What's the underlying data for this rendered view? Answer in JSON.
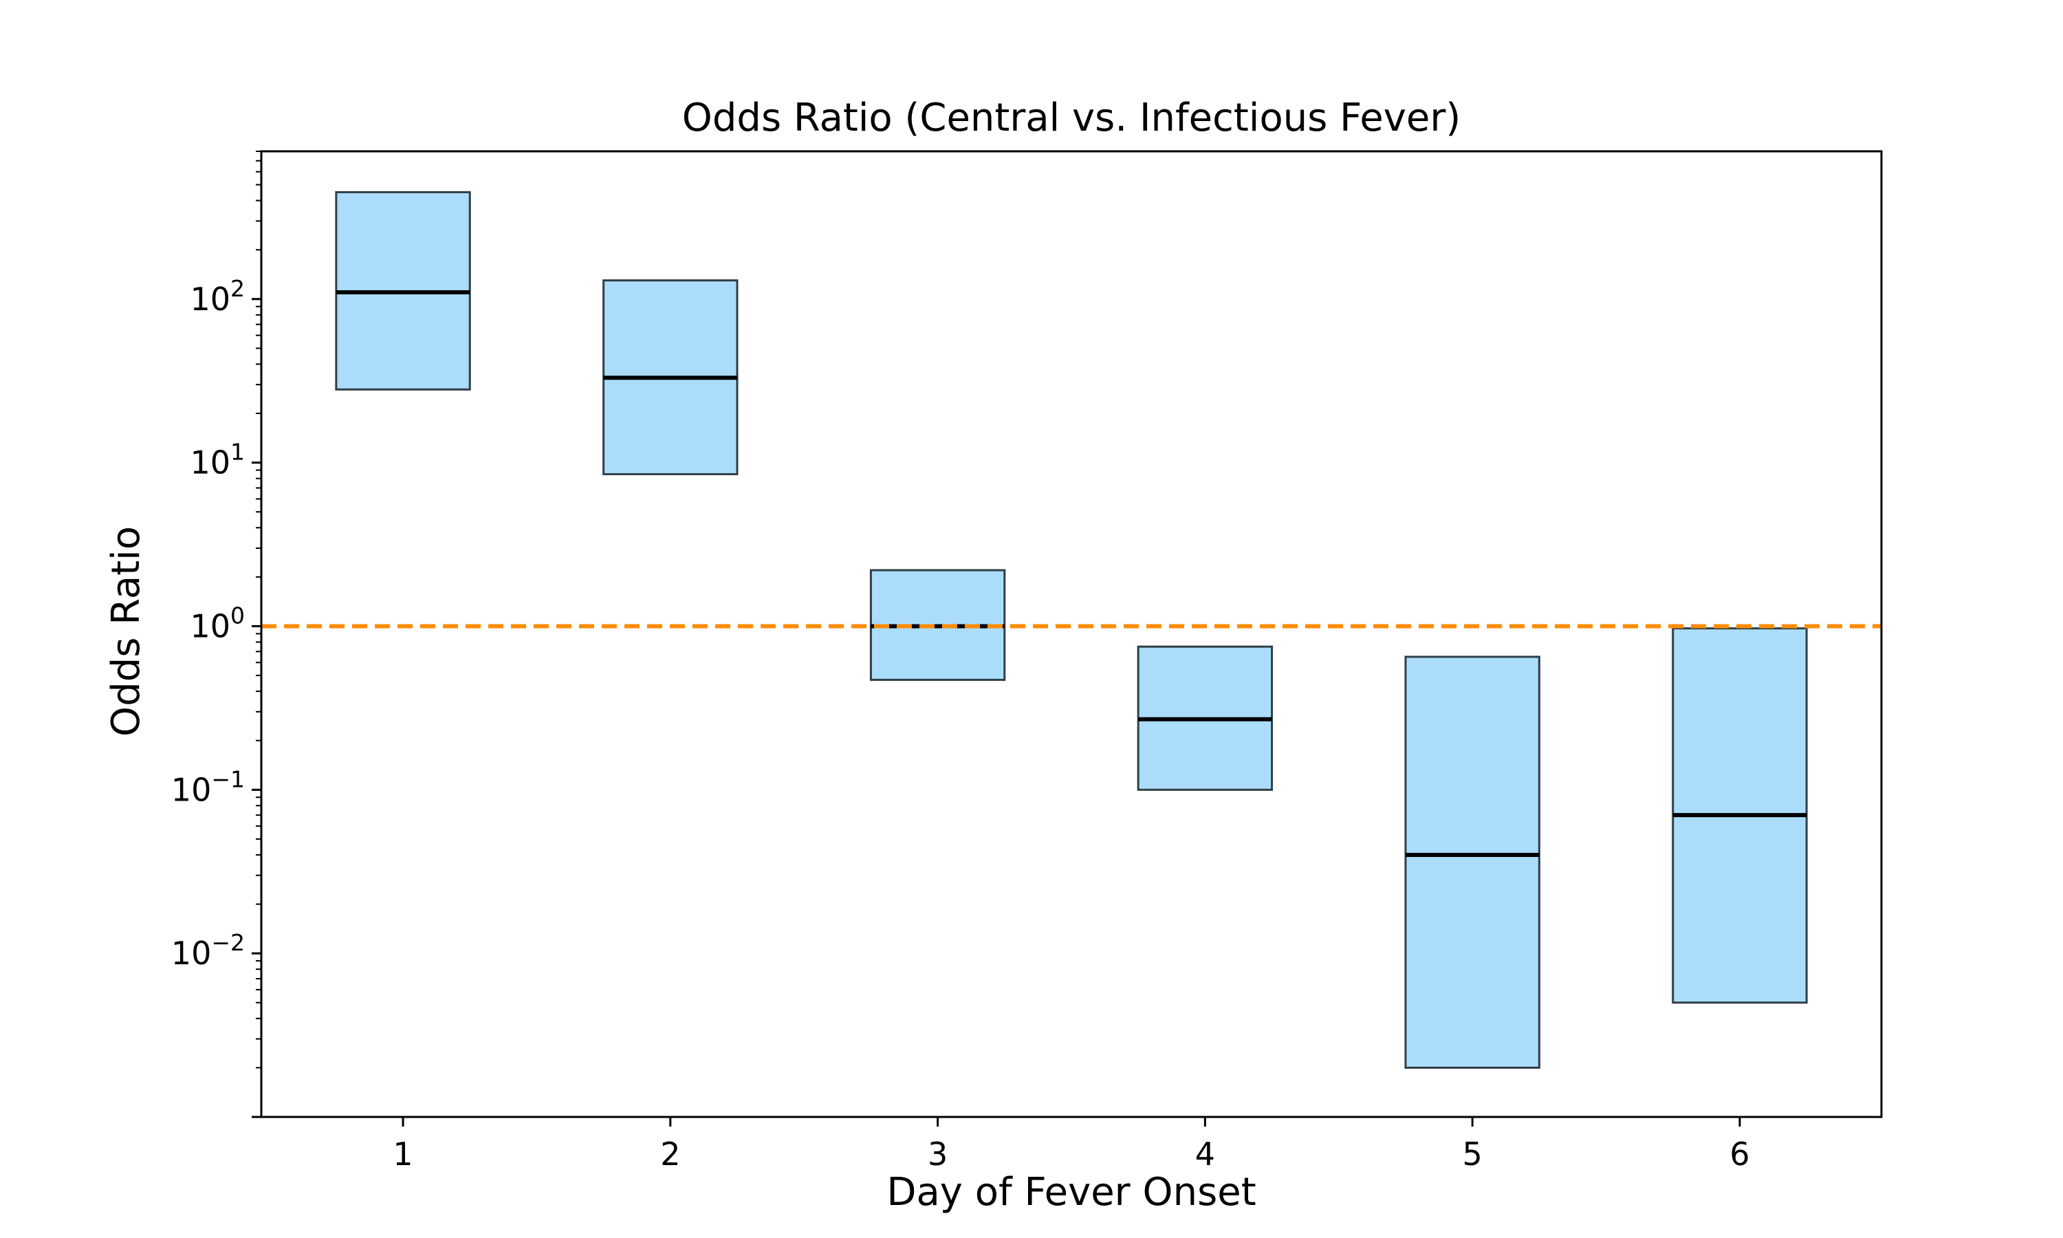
{
  "chart_data": {
    "type": "box",
    "title": "Odds Ratio (Central vs. Infectious Fever)",
    "xlabel": "Day of Fever Onset",
    "ylabel": "Odds Ratio",
    "yscale": "log",
    "ylim": [
      0.001,
      800
    ],
    "xlim": [
      0.47,
      6.53
    ],
    "grid": false,
    "categories": [
      "1",
      "2",
      "3",
      "4",
      "5",
      "6"
    ],
    "boxes": [
      {
        "x": 1,
        "low": 28,
        "high": 450,
        "median": 110
      },
      {
        "x": 2,
        "low": 8.5,
        "high": 130,
        "median": 33
      },
      {
        "x": 3,
        "low": 0.47,
        "high": 2.2,
        "median": 1.0
      },
      {
        "x": 4,
        "low": 0.1,
        "high": 0.75,
        "median": 0.27
      },
      {
        "x": 5,
        "low": 0.002,
        "high": 0.65,
        "median": 0.04
      },
      {
        "x": 6,
        "low": 0.005,
        "high": 0.97,
        "median": 0.07
      }
    ],
    "y_ticks": [
      {
        "value": 100,
        "base": "10",
        "exp": "2"
      },
      {
        "value": 10,
        "base": "10",
        "exp": "1"
      },
      {
        "value": 1,
        "base": "10",
        "exp": "0"
      },
      {
        "value": 0.1,
        "base": "10",
        "exp": "−1"
      },
      {
        "value": 0.01,
        "base": "10",
        "exp": "−2"
      }
    ],
    "reference_line": {
      "value": 1,
      "style": "dashed",
      "color": "#ff8c00"
    },
    "colors": {
      "box_fill": "#87cefa",
      "box_edge": "#2f3e46",
      "median": "#000000",
      "axes": "#000000"
    }
  }
}
